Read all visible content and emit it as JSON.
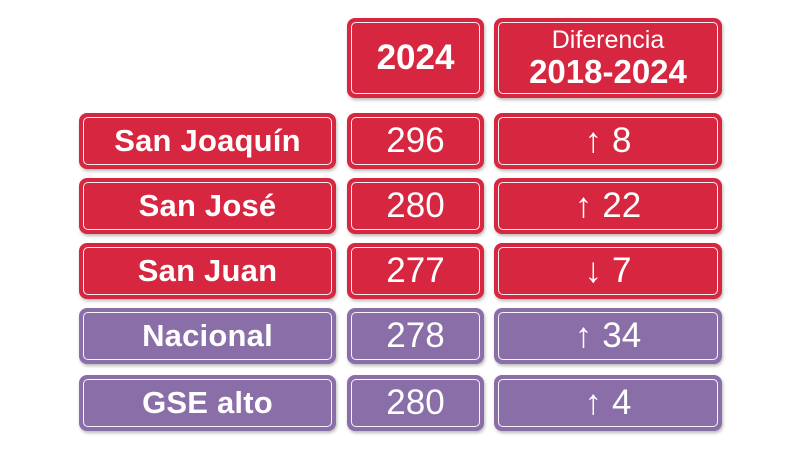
{
  "header": {
    "year_label": "2024",
    "diff_title": "Diferencia",
    "diff_range": "2018-2024"
  },
  "rows": [
    {
      "label": "San Joaquín",
      "value": "296",
      "arrow": "↑",
      "diff": "8",
      "color": "#d7263f"
    },
    {
      "label": "San José",
      "value": "280",
      "arrow": "↑",
      "diff": "22",
      "color": "#d7263f"
    },
    {
      "label": "San Juan",
      "value": "277",
      "arrow": "↓",
      "diff": "7",
      "color": "#d7263f"
    },
    {
      "label": "Nacional",
      "value": "278",
      "arrow": "↑",
      "diff": "34",
      "color": "#8a6ea8"
    },
    {
      "label": "GSE alto",
      "value": "280",
      "arrow": "↑",
      "diff": "4",
      "color": "#8a6ea8"
    }
  ]
}
